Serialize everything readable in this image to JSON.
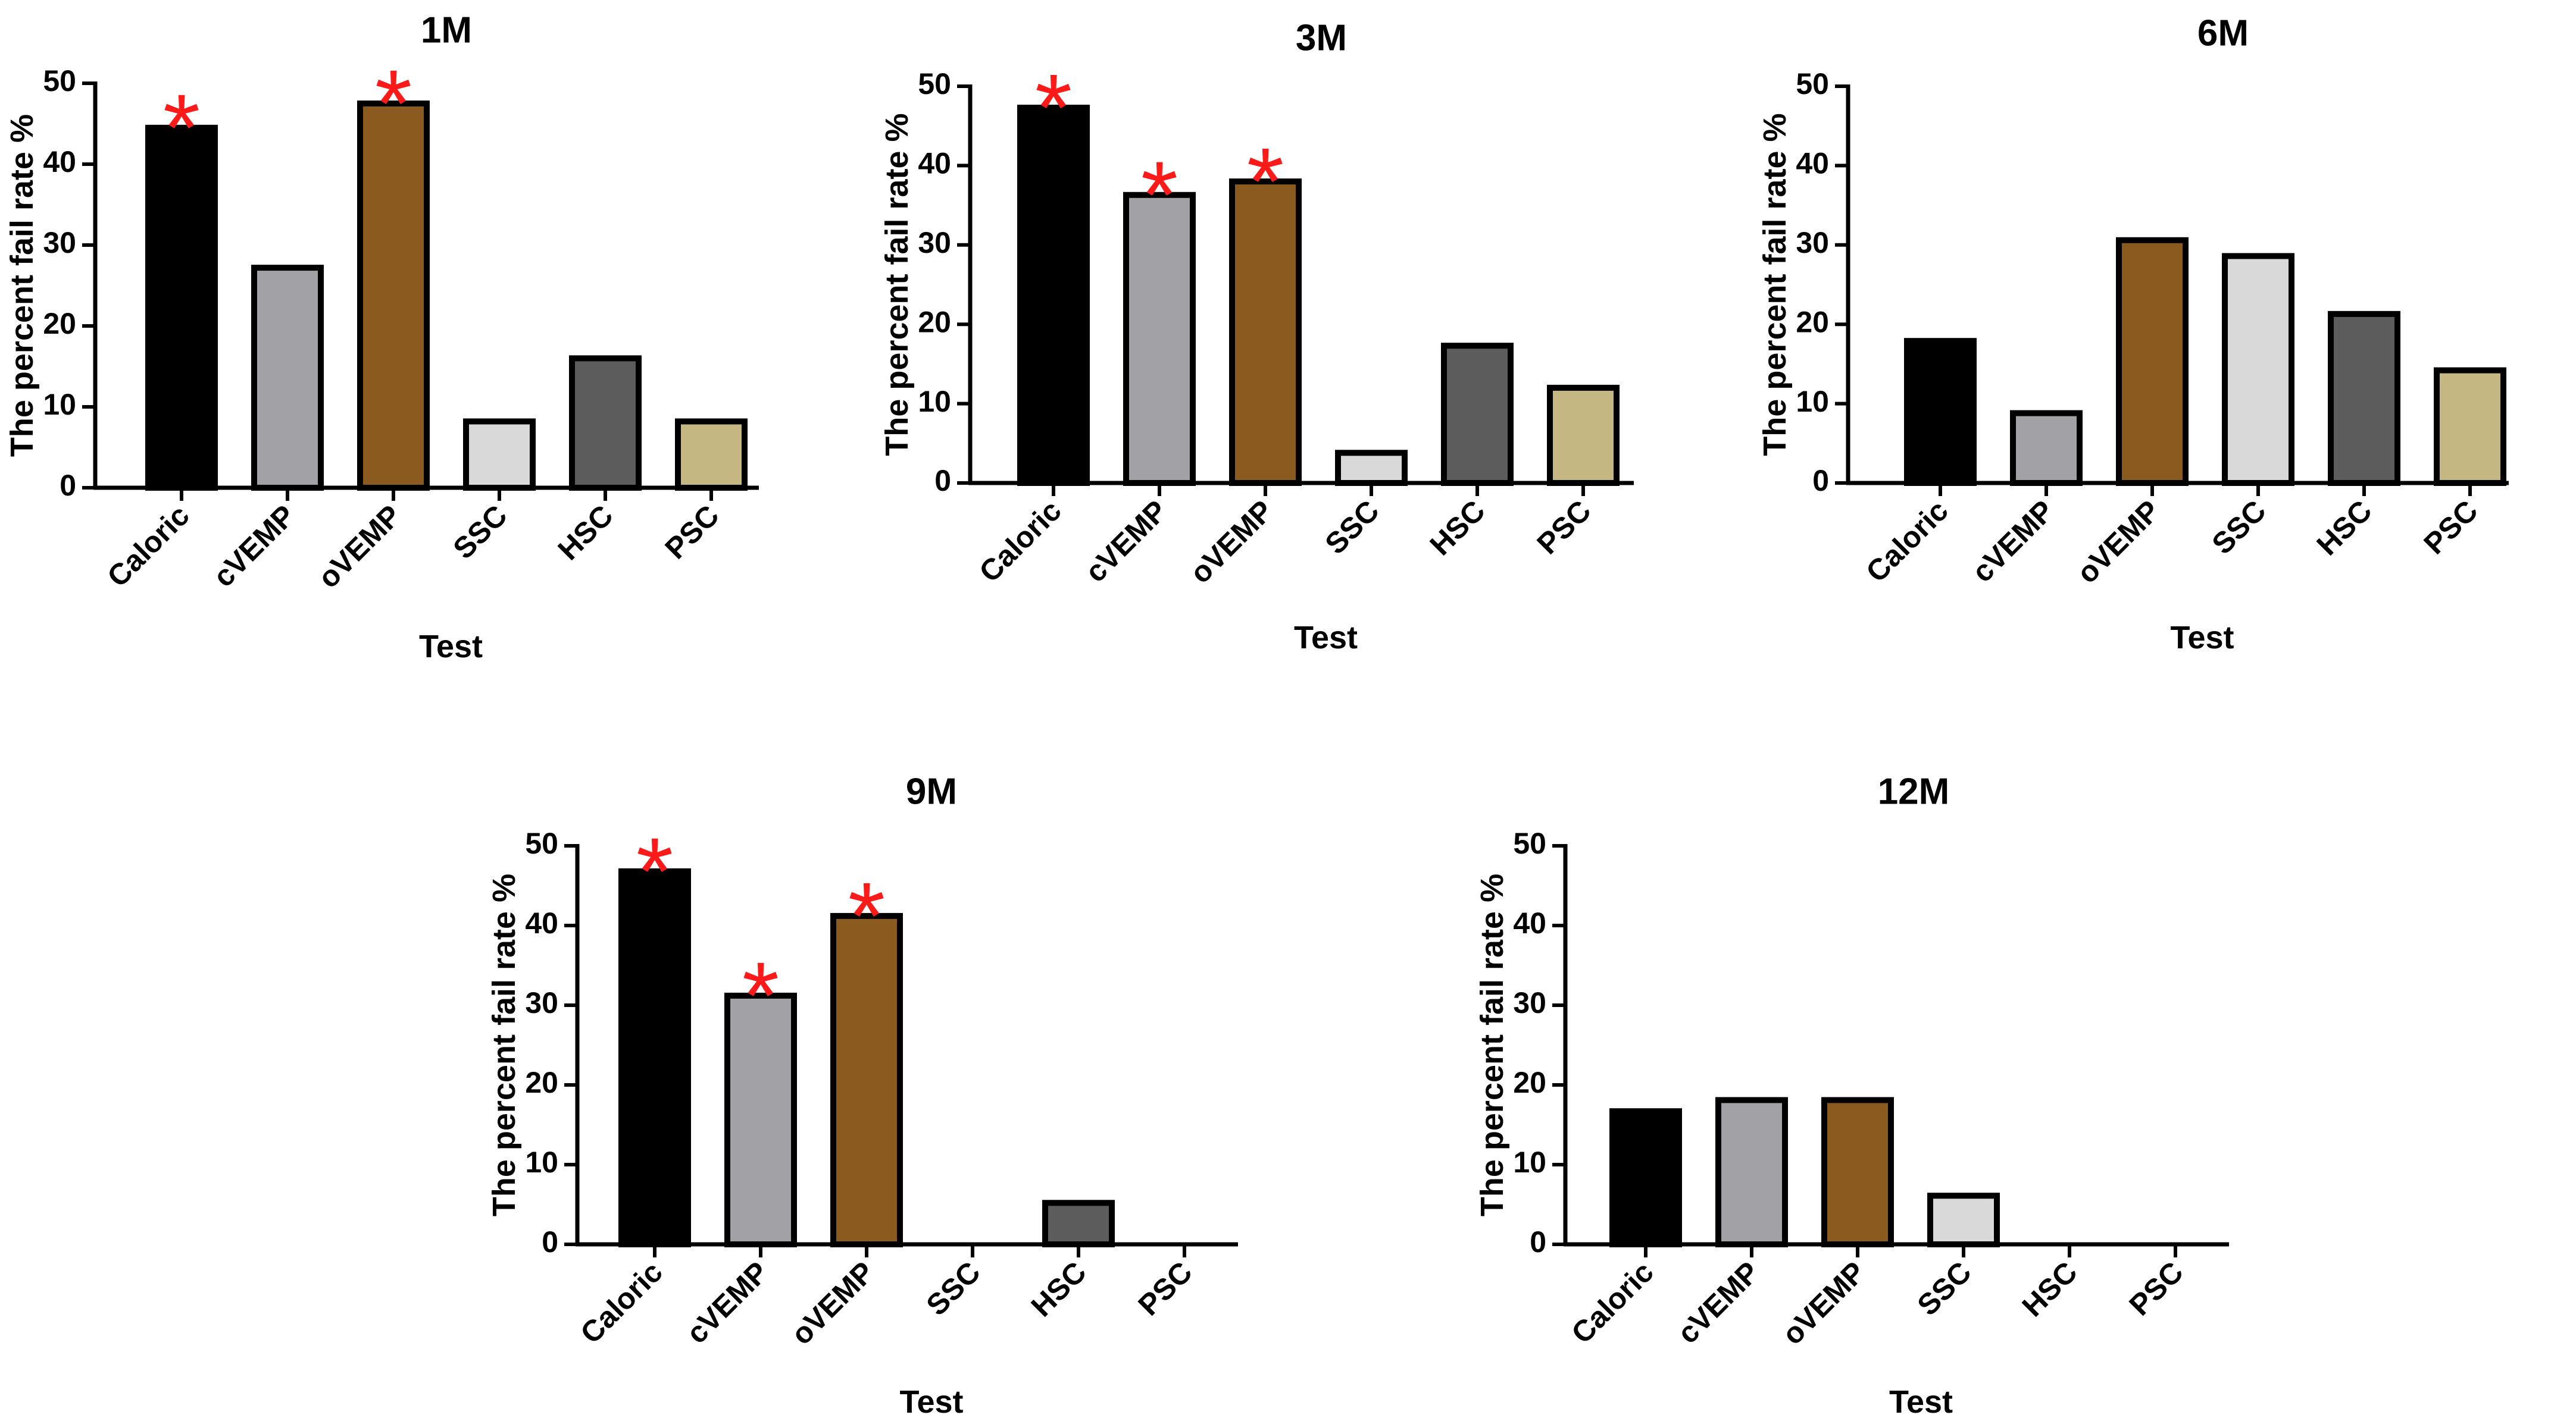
{
  "figure": {
    "styles": {
      "bar_fills": [
        "#000000",
        "#a2a2a6",
        "#8b5a1f",
        "#d9d9d9",
        "#5c5c5c",
        "#c4b782"
      ],
      "bar_stroke": "#000000",
      "star_color": "#ff1a1a"
    }
  },
  "chart_data": [
    {
      "type": "bar",
      "title": "1M",
      "xlabel": "Test",
      "ylabel": "The percent fail rate %",
      "ylim": [
        0,
        50
      ],
      "yticks": [
        0,
        10,
        20,
        30,
        40,
        50
      ],
      "categories": [
        "Caloric",
        "cVEMP",
        "oVEMP",
        "SSC",
        "HSC",
        "PSC"
      ],
      "values": [
        44.5,
        27.2,
        47.5,
        8.2,
        16.0,
        8.2
      ],
      "significance": [
        "*",
        "",
        "*",
        "",
        "",
        ""
      ]
    },
    {
      "type": "bar",
      "title": "3M",
      "xlabel": "Test",
      "ylabel": "The percent fail rate %",
      "ylim": [
        0,
        50
      ],
      "yticks": [
        0,
        10,
        20,
        30,
        40,
        50
      ],
      "categories": [
        "Caloric",
        "cVEMP",
        "oVEMP",
        "SSC",
        "HSC",
        "PSC"
      ],
      "values": [
        47.3,
        36.3,
        38.0,
        3.8,
        17.3,
        12.0
      ],
      "significance": [
        "*",
        "*",
        "*",
        "",
        "",
        ""
      ]
    },
    {
      "type": "bar",
      "title": "6M",
      "xlabel": "Test",
      "ylabel": "The percent fail rate %",
      "ylim": [
        0,
        50
      ],
      "yticks": [
        0,
        10,
        20,
        30,
        40,
        50
      ],
      "categories": [
        "Caloric",
        "cVEMP",
        "oVEMP",
        "SSC",
        "HSC",
        "PSC"
      ],
      "values": [
        17.9,
        8.8,
        30.6,
        28.6,
        21.3,
        14.2
      ],
      "significance": [
        "",
        "",
        "",
        "",
        "",
        ""
      ]
    },
    {
      "type": "bar",
      "title": "9M",
      "xlabel": "Test",
      "ylabel": "The percent fail rate %",
      "ylim": [
        0,
        50
      ],
      "yticks": [
        0,
        10,
        20,
        30,
        40,
        50
      ],
      "categories": [
        "Caloric",
        "cVEMP",
        "oVEMP",
        "SSC",
        "HSC",
        "PSC"
      ],
      "values": [
        46.8,
        31.2,
        41.2,
        0,
        5.2,
        0
      ],
      "significance": [
        "*",
        "*",
        "*",
        "",
        "",
        ""
      ]
    },
    {
      "type": "bar",
      "title": "12M",
      "xlabel": "Test",
      "ylabel": "The percent fail rate %",
      "ylim": [
        0,
        50
      ],
      "yticks": [
        0,
        10,
        20,
        30,
        40,
        50
      ],
      "categories": [
        "Caloric",
        "cVEMP",
        "oVEMP",
        "SSC",
        "HSC",
        "PSC"
      ],
      "values": [
        16.7,
        18.1,
        18.1,
        6.1,
        0,
        0
      ],
      "significance": [
        "",
        "",
        "",
        "",
        "",
        ""
      ]
    }
  ]
}
